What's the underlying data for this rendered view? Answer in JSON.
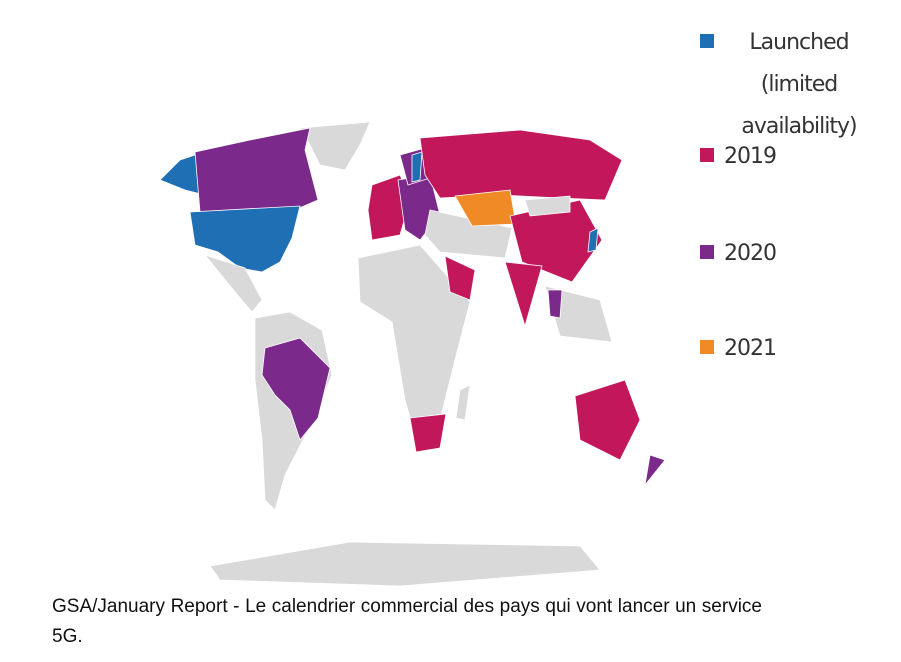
{
  "legend": {
    "items": [
      {
        "label": "Launched (limited availability)",
        "color": "#1f6fb5"
      },
      {
        "label": "2019",
        "color": "#c2185b"
      },
      {
        "label": "2020",
        "color": "#7b2a8b"
      },
      {
        "label": "2021",
        "color": "#f08a24"
      }
    ]
  },
  "caption": "GSA/January Report - Le calendrier commercial des pays qui vont lancer un service 5G."
}
